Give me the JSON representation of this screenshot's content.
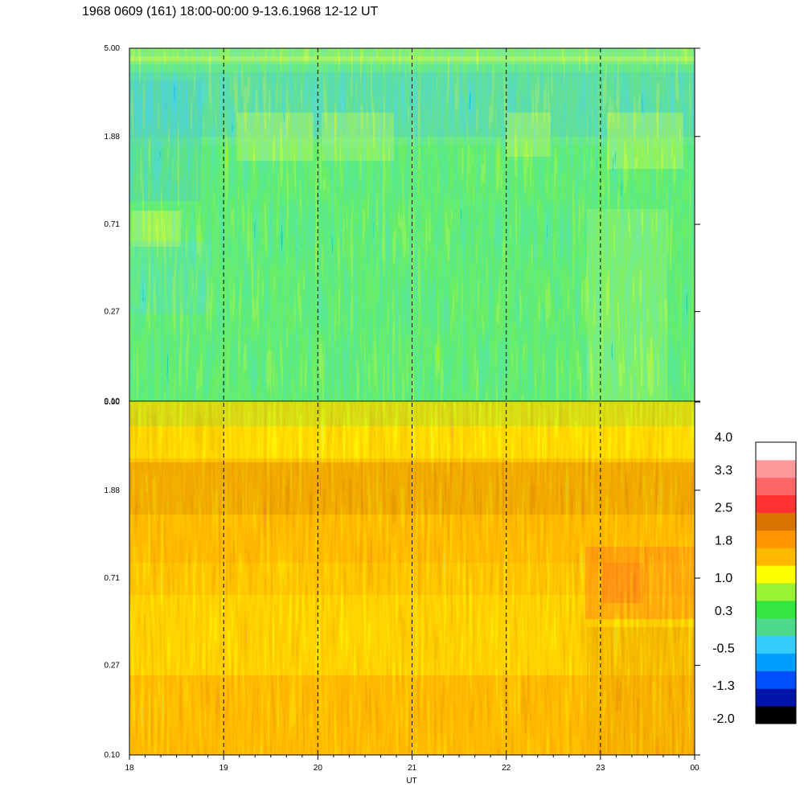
{
  "chart_data": {
    "type": "heatmap",
    "title": "1968 0609 (161) 18:00-00:00 9-13.6.1968  12-12 UT",
    "xlabel": "UT",
    "x_ticks": [
      "18",
      "19",
      "20",
      "21",
      "22",
      "23",
      "00"
    ],
    "y_ticks": [
      "0.10",
      "0.27",
      "0.71",
      "1.88",
      "5.00"
    ],
    "ylim": [
      0.1,
      5.0
    ],
    "y_scale": "log",
    "grid": "dashed vertical lines at each hour",
    "panels": [
      {
        "name": "",
        "dominant_level": 0.3
      },
      {
        "name": "",
        "dominant_level": 1.8
      }
    ],
    "colorbar": {
      "labels": [
        "4.0",
        "3.3",
        "2.5",
        "1.8",
        "1.0",
        "0.3",
        "-0.5",
        "-1.3",
        "-2.0"
      ],
      "levels": [
        -2.0,
        4.0
      ],
      "colors": [
        "#000000",
        "#0014aa",
        "#0050ff",
        "#009eff",
        "#33ccff",
        "#4dd98c",
        "#33e640",
        "#99f233",
        "#ffff00",
        "#ffb800",
        "#ff9400",
        "#d97300",
        "#ff3333",
        "#ff6666",
        "#ff9999",
        "#ffffff"
      ]
    }
  }
}
